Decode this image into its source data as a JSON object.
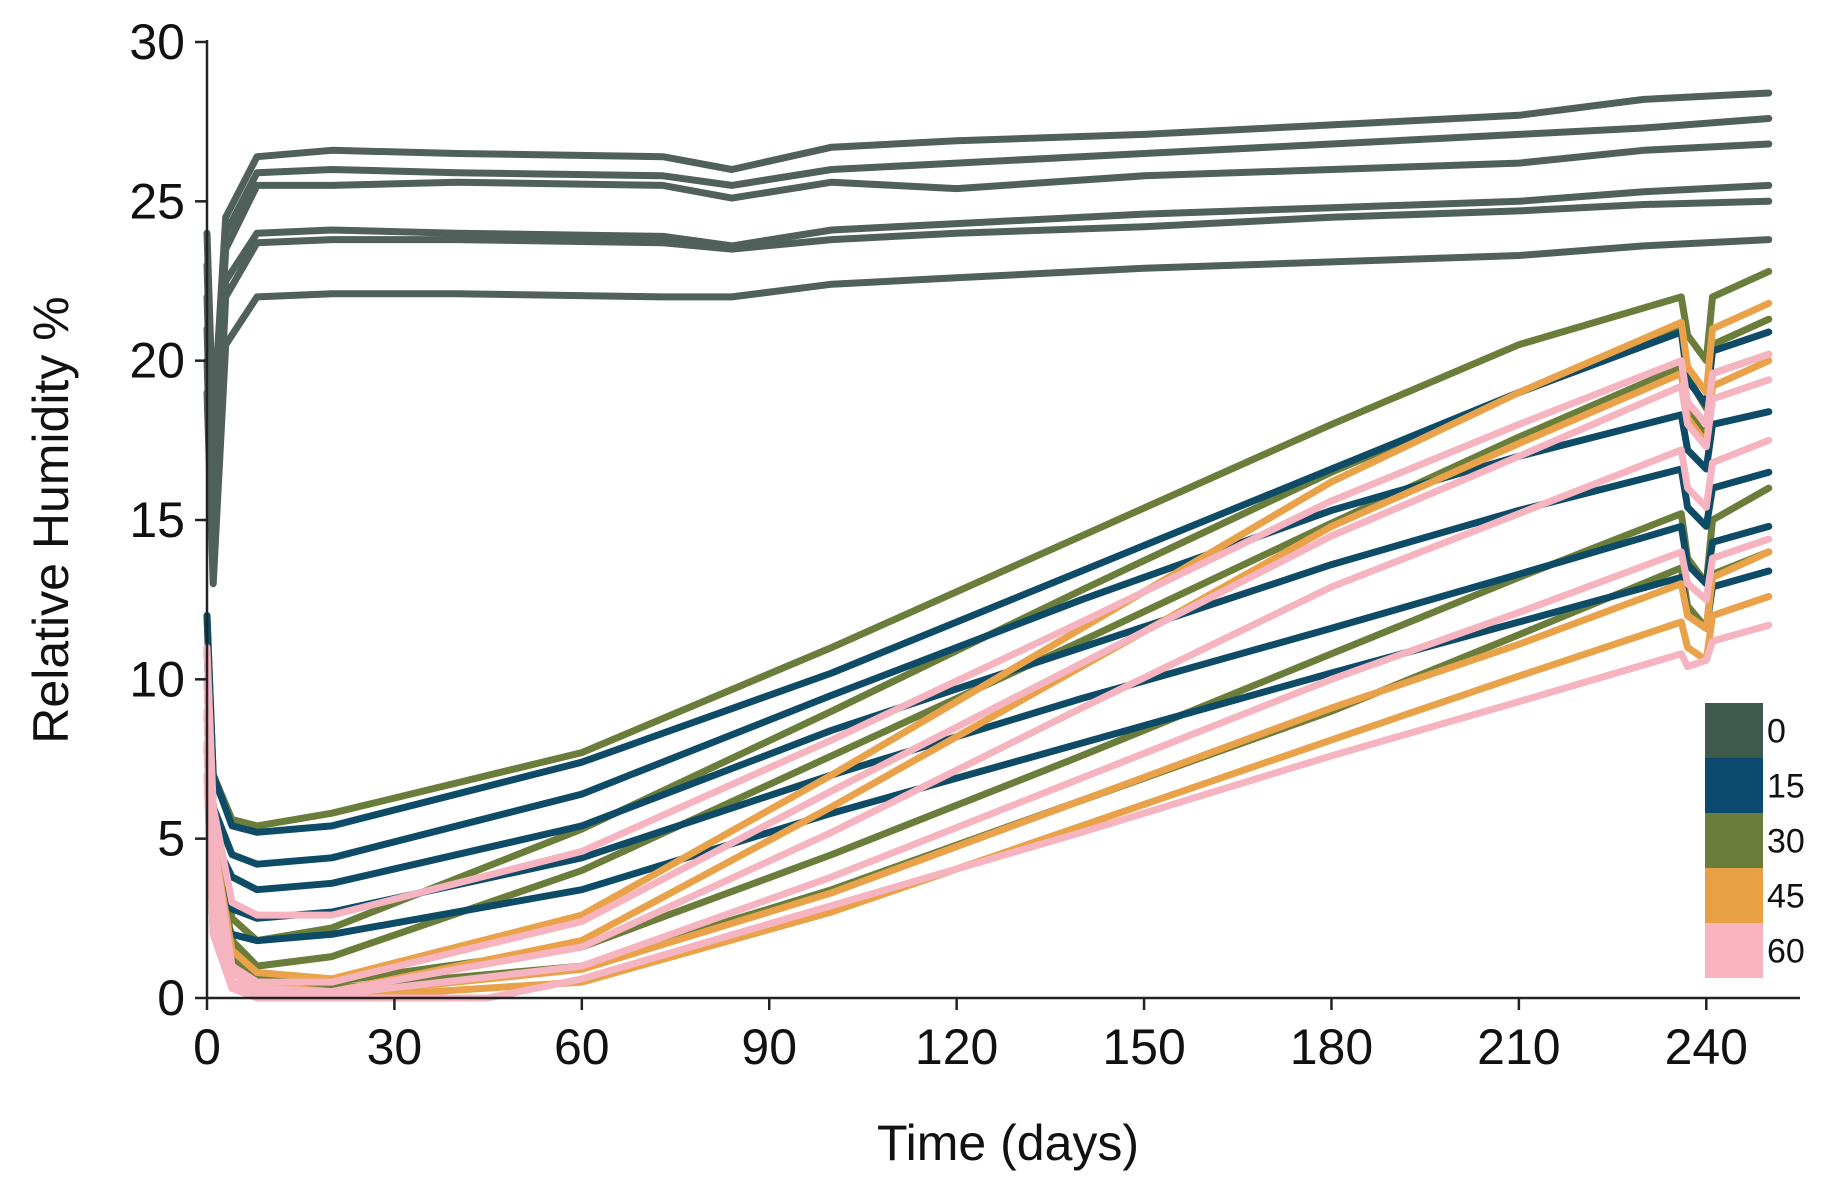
{
  "chart_data": {
    "type": "line",
    "title": "",
    "xlabel": "Time (days)",
    "ylabel": "Relative Humidity %",
    "xlim": [
      0,
      255
    ],
    "ylim": [
      0,
      30
    ],
    "xticks": [
      0,
      30,
      60,
      90,
      120,
      150,
      180,
      210,
      240
    ],
    "yticks": [
      0,
      5,
      10,
      15,
      20,
      25,
      30
    ],
    "grid": false,
    "legend_position": "bottom-right",
    "legend": [
      {
        "label": "0",
        "color": "#3d5a4d"
      },
      {
        "label": "15",
        "color": "#0b4a6e"
      },
      {
        "label": "30",
        "color": "#6b7d3a"
      },
      {
        "label": "45",
        "color": "#e8a044"
      },
      {
        "label": "60",
        "color": "#f8b4c0"
      }
    ],
    "series": [
      {
        "name": "0",
        "color": "#50605a",
        "x": [
          0,
          1,
          3,
          8,
          20,
          40,
          73,
          84,
          100,
          120,
          150,
          180,
          210,
          230,
          250
        ],
        "values": [
          24,
          18,
          24.5,
          26.4,
          26.6,
          26.5,
          26.4,
          26.0,
          26.7,
          26.9,
          27.1,
          27.4,
          27.7,
          28.2,
          28.4
        ]
      },
      {
        "name": "0",
        "color": "#50605a",
        "x": [
          0,
          1,
          3,
          8,
          20,
          40,
          73,
          84,
          100,
          120,
          150,
          180,
          210,
          230,
          250
        ],
        "values": [
          23,
          17,
          24,
          25.9,
          26.0,
          25.9,
          25.8,
          25.5,
          26.0,
          26.2,
          26.5,
          26.8,
          27.1,
          27.3,
          27.6
        ]
      },
      {
        "name": "0",
        "color": "#50605a",
        "x": [
          0,
          1,
          3,
          8,
          20,
          40,
          73,
          84,
          100,
          120,
          150,
          180,
          210,
          230,
          250
        ],
        "values": [
          22,
          16,
          23.5,
          25.5,
          25.5,
          25.6,
          25.5,
          25.1,
          25.6,
          25.4,
          25.8,
          26.0,
          26.2,
          26.6,
          26.8
        ]
      },
      {
        "name": "0",
        "color": "#50605a",
        "x": [
          0,
          1,
          3,
          8,
          20,
          40,
          73,
          84,
          100,
          120,
          150,
          180,
          210,
          230,
          250
        ],
        "values": [
          21,
          15,
          22.5,
          24.0,
          24.1,
          24.0,
          23.9,
          23.6,
          24.1,
          24.3,
          24.6,
          24.8,
          25.0,
          25.3,
          25.5
        ]
      },
      {
        "name": "0",
        "color": "#50605a",
        "x": [
          0,
          1,
          3,
          8,
          20,
          40,
          73,
          84,
          100,
          120,
          150,
          180,
          210,
          230,
          250
        ],
        "values": [
          20,
          14,
          22,
          23.7,
          23.8,
          23.8,
          23.7,
          23.5,
          23.8,
          24.0,
          24.2,
          24.5,
          24.7,
          24.9,
          25.0
        ]
      },
      {
        "name": "0",
        "color": "#50605a",
        "x": [
          0,
          1,
          3,
          8,
          20,
          40,
          73,
          84,
          100,
          120,
          150,
          180,
          210,
          230,
          250
        ],
        "values": [
          19,
          13,
          20.5,
          22.0,
          22.1,
          22.1,
          22.0,
          22.0,
          22.4,
          22.6,
          22.9,
          23.1,
          23.3,
          23.6,
          23.8
        ]
      },
      {
        "name": "30",
        "color": "#6b7d3a",
        "x": [
          0,
          1,
          4,
          8,
          20,
          60,
          100,
          140,
          180,
          210,
          236,
          237,
          240,
          241,
          250
        ],
        "values": [
          12,
          7,
          5.6,
          5.4,
          5.8,
          7.7,
          11.0,
          14.5,
          18.0,
          20.5,
          22.0,
          20.8,
          20.0,
          22.0,
          22.8
        ]
      },
      {
        "name": "30",
        "color": "#6b7d3a",
        "x": [
          0,
          1,
          4,
          8,
          20,
          60,
          100,
          140,
          180,
          210,
          236,
          237,
          240,
          241,
          250
        ],
        "values": [
          11,
          6,
          2.5,
          1.8,
          2.2,
          5.3,
          9.0,
          12.8,
          16.5,
          19.0,
          21.0,
          19.5,
          18.5,
          20.5,
          21.3
        ]
      },
      {
        "name": "30",
        "color": "#6b7d3a",
        "x": [
          0,
          1,
          4,
          8,
          20,
          60,
          100,
          140,
          180,
          210,
          236,
          237,
          240,
          241,
          250
        ],
        "values": [
          10,
          5,
          1.8,
          1.0,
          1.3,
          4.0,
          7.6,
          11.2,
          14.9,
          17.6,
          19.8,
          18.4,
          17.6,
          19.6,
          20.2
        ]
      },
      {
        "name": "30",
        "color": "#6b7d3a",
        "x": [
          0,
          1,
          4,
          8,
          20,
          60,
          100,
          140,
          180,
          210,
          236,
          237,
          240,
          241,
          250
        ],
        "values": [
          9,
          4,
          1.2,
          0.6,
          0.5,
          1.6,
          4.5,
          7.6,
          10.8,
          13.2,
          15.2,
          13.8,
          13.0,
          15.0,
          16.0
        ]
      },
      {
        "name": "30",
        "color": "#6b7d3a",
        "x": [
          0,
          1,
          4,
          8,
          20,
          60,
          100,
          140,
          180,
          210,
          236,
          237,
          240,
          241,
          250
        ],
        "values": [
          8,
          3,
          0.8,
          0.4,
          0.3,
          1.0,
          3.4,
          6.2,
          9.0,
          11.4,
          13.5,
          12.3,
          11.6,
          13.3,
          14.0
        ]
      },
      {
        "name": "15",
        "color": "#0e4b66",
        "x": [
          0,
          1,
          4,
          8,
          20,
          60,
          100,
          140,
          180,
          210,
          236,
          237,
          240,
          241,
          250
        ],
        "values": [
          12,
          7,
          5.4,
          5.2,
          5.4,
          7.4,
          10.2,
          13.4,
          16.6,
          19.0,
          20.9,
          19.4,
          18.6,
          20.3,
          20.9
        ]
      },
      {
        "name": "15",
        "color": "#0e4b66",
        "x": [
          0,
          1,
          4,
          8,
          20,
          60,
          100,
          140,
          180,
          210,
          236,
          237,
          240,
          241,
          250
        ],
        "values": [
          11,
          6,
          4.5,
          4.2,
          4.4,
          6.4,
          9.5,
          12.5,
          15.3,
          17.0,
          18.3,
          17.2,
          16.6,
          18.0,
          18.4
        ]
      },
      {
        "name": "15",
        "color": "#0e4b66",
        "x": [
          0,
          1,
          4,
          8,
          20,
          60,
          100,
          140,
          180,
          210,
          236,
          237,
          240,
          241,
          250
        ],
        "values": [
          10,
          5,
          3.8,
          3.4,
          3.6,
          5.4,
          8.4,
          11.0,
          13.6,
          15.3,
          16.6,
          15.4,
          14.8,
          16.0,
          16.5
        ]
      },
      {
        "name": "15",
        "color": "#0e4b66",
        "x": [
          0,
          1,
          4,
          8,
          20,
          60,
          100,
          140,
          180,
          210,
          236,
          237,
          240,
          241,
          250
        ],
        "values": [
          9,
          4,
          2.8,
          2.5,
          2.7,
          4.4,
          7.0,
          9.4,
          11.6,
          13.3,
          14.8,
          13.6,
          13.0,
          14.3,
          14.8
        ]
      },
      {
        "name": "15",
        "color": "#0e4b66",
        "x": [
          0,
          1,
          4,
          8,
          20,
          60,
          100,
          140,
          180,
          210,
          236,
          237,
          240,
          241,
          250
        ],
        "values": [
          8,
          3,
          2.0,
          1.8,
          2.0,
          3.4,
          5.8,
          8.0,
          10.2,
          11.8,
          13.2,
          12.0,
          11.6,
          12.9,
          13.4
        ]
      },
      {
        "name": "45",
        "color": "#e9a24a",
        "x": [
          0,
          1,
          4,
          8,
          20,
          60,
          100,
          140,
          180,
          210,
          236,
          237,
          240,
          241,
          250
        ],
        "values": [
          10,
          5,
          1.5,
          0.8,
          0.6,
          2.6,
          7.0,
          11.6,
          16.2,
          19.0,
          21.2,
          19.8,
          19.0,
          21.0,
          21.8
        ]
      },
      {
        "name": "45",
        "color": "#e9a24a",
        "x": [
          0,
          1,
          4,
          8,
          20,
          60,
          100,
          140,
          180,
          210,
          236,
          237,
          240,
          241,
          250
        ],
        "values": [
          9,
          4,
          1.0,
          0.4,
          0.2,
          1.8,
          6.0,
          10.4,
          14.8,
          17.4,
          19.6,
          18.2,
          17.4,
          19.2,
          20.0
        ]
      },
      {
        "name": "45",
        "color": "#e9a24a",
        "x": [
          0,
          1,
          4,
          8,
          20,
          60,
          100,
          140,
          180,
          210,
          236,
          237,
          240,
          241,
          250
        ],
        "values": [
          8,
          3,
          0.8,
          0.3,
          0.1,
          0.9,
          3.3,
          6.2,
          9.1,
          11.1,
          13.0,
          12.0,
          11.6,
          13.2,
          14.0
        ]
      },
      {
        "name": "45",
        "color": "#e9a24a",
        "x": [
          0,
          1,
          4,
          8,
          20,
          60,
          100,
          140,
          180,
          210,
          236,
          237,
          240,
          241,
          250
        ],
        "values": [
          7,
          2,
          0.4,
          0.1,
          0.0,
          0.5,
          2.7,
          5.4,
          8.1,
          10.1,
          11.8,
          11.0,
          10.6,
          12.0,
          12.6
        ]
      },
      {
        "name": "60",
        "color": "#f6b3c0",
        "x": [
          0,
          1,
          4,
          8,
          20,
          60,
          100,
          140,
          180,
          210,
          236,
          237,
          240,
          241,
          250
        ],
        "values": [
          11,
          6,
          3.0,
          2.6,
          2.6,
          4.6,
          8.1,
          11.8,
          15.6,
          18.0,
          20.0,
          18.7,
          18.0,
          19.6,
          20.2
        ]
      },
      {
        "name": "60",
        "color": "#f6b3c0",
        "x": [
          0,
          1,
          4,
          8,
          20,
          60,
          100,
          140,
          180,
          210,
          236,
          237,
          240,
          241,
          250
        ],
        "values": [
          10,
          5,
          1.0,
          0.5,
          0.5,
          2.4,
          6.5,
          10.5,
          14.5,
          17.0,
          19.2,
          18.0,
          17.3,
          18.8,
          19.4
        ]
      },
      {
        "name": "60",
        "color": "#f6b3c0",
        "x": [
          0,
          1,
          4,
          8,
          20,
          60,
          100,
          140,
          180,
          210,
          236,
          237,
          240,
          241,
          250
        ],
        "values": [
          9,
          4,
          0.8,
          0.3,
          0.2,
          1.6,
          5.2,
          9.1,
          12.9,
          15.2,
          17.2,
          16.0,
          15.4,
          16.8,
          17.5
        ]
      },
      {
        "name": "60",
        "color": "#f6b3c0",
        "x": [
          0,
          1,
          4,
          8,
          20,
          60,
          100,
          140,
          180,
          210,
          236,
          237,
          240,
          241,
          250
        ],
        "values": [
          8,
          3,
          0.5,
          0.2,
          0.1,
          1.0,
          3.8,
          6.9,
          10.0,
          12.1,
          14.0,
          13.0,
          12.5,
          13.8,
          14.4
        ]
      },
      {
        "name": "60",
        "color": "#f6b3c0",
        "x": [
          0,
          1,
          4,
          8,
          20,
          45,
          60,
          100,
          140,
          180,
          210,
          236,
          237,
          240,
          241,
          250
        ],
        "values": [
          7,
          2,
          0.3,
          0.0,
          0.0,
          0.0,
          0.6,
          2.9,
          5.2,
          7.6,
          9.3,
          10.8,
          10.4,
          10.6,
          11.2,
          11.7
        ]
      }
    ]
  }
}
